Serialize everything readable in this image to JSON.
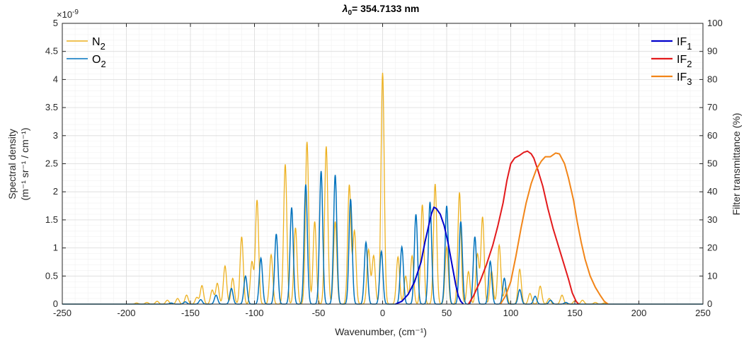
{
  "chart_data": {
    "type": "line",
    "title": {
      "symbol": "λ",
      "subscript": "0",
      "text": "= 354.7133 nm"
    },
    "xlabel": "Wavenumber, (cm⁻¹)",
    "ylabel_left": {
      "line1": "Spectral density",
      "line2": "(m⁻¹ sr⁻¹ / cm⁻¹)"
    },
    "ylabel_right": "Filter transmittance (%)",
    "y_exponent": {
      "base": "×10",
      "power": "-9"
    },
    "xlim": [
      -250,
      250
    ],
    "ylim_left": [
      0,
      5
    ],
    "ylim_right": [
      0,
      100
    ],
    "x_ticks": [
      "-250",
      "-200",
      "-150",
      "-100",
      "-50",
      "0",
      "50",
      "100",
      "150",
      "200",
      "250"
    ],
    "y_left_ticks": [
      "0",
      "0.5",
      "1",
      "1.5",
      "2",
      "2.5",
      "3",
      "3.5",
      "4",
      "4.5",
      "5"
    ],
    "y_right_ticks": [
      "0",
      "10",
      "20",
      "30",
      "40",
      "50",
      "60",
      "70",
      "80",
      "90",
      "100"
    ],
    "grid": true,
    "colors": {
      "N2": "#EDB120",
      "O2": "#0072BD",
      "IF1": "#0000CC",
      "IF2": "#E31A1C",
      "IF3": "#F28518"
    },
    "legend_left": [
      {
        "name": "N",
        "sub": "2",
        "color": "#EDB120"
      },
      {
        "name": "O",
        "sub": "2",
        "color": "#0072BD"
      }
    ],
    "legend_right": [
      {
        "name": "IF",
        "sub": "1",
        "color": "#0000CC"
      },
      {
        "name": "IF",
        "sub": "2",
        "color": "#E31A1C"
      },
      {
        "name": "IF",
        "sub": "3",
        "color": "#F28518"
      }
    ],
    "series": [
      {
        "name": "N2",
        "axis": "left",
        "color": "#EDB120",
        "kind": "lines",
        "peaks": [
          [
            -192,
            0.02
          ],
          [
            -184,
            0.03
          ],
          [
            -176,
            0.05
          ],
          [
            -168,
            0.07
          ],
          [
            -160,
            0.1
          ],
          [
            -153,
            0.16
          ],
          [
            -145,
            0.12
          ],
          [
            -141,
            0.33
          ],
          [
            -133,
            0.25
          ],
          [
            -129,
            0.37
          ],
          [
            -123,
            0.68
          ],
          [
            -117,
            0.46
          ],
          [
            -110,
            1.2
          ],
          [
            -102,
            0.75
          ],
          [
            -98,
            1.85
          ],
          [
            -87,
            0.88
          ],
          [
            -76,
            2.49
          ],
          [
            -68,
            1.36
          ],
          [
            -59,
            2.89
          ],
          [
            -53,
            1.47
          ],
          [
            -44,
            2.81
          ],
          [
            -37,
            1.47
          ],
          [
            -26,
            2.12
          ],
          [
            -22,
            1.3
          ],
          [
            -11,
            0.97
          ],
          [
            -7,
            0.86
          ],
          [
            0,
            4.12
          ],
          [
            12,
            0.84
          ],
          [
            18,
            0.5
          ],
          [
            23,
            0.86
          ],
          [
            31,
            1.77
          ],
          [
            41,
            2.14
          ],
          [
            50,
            1.02
          ],
          [
            60,
            1.99
          ],
          [
            67,
            0.58
          ],
          [
            74,
            0.89
          ],
          [
            78,
            1.55
          ],
          [
            85,
            0.59
          ],
          [
            91,
            1.05
          ],
          [
            96,
            0.3
          ],
          [
            107,
            0.62
          ],
          [
            115,
            0.19
          ],
          [
            123,
            0.32
          ],
          [
            130,
            0.1
          ],
          [
            140,
            0.16
          ],
          [
            150,
            0.06
          ],
          [
            156,
            0.07
          ],
          [
            166,
            0.03
          ],
          [
            173,
            0.02
          ]
        ]
      },
      {
        "name": "O2",
        "axis": "left",
        "color": "#0072BD",
        "kind": "lines",
        "peaks": [
          [
            -165,
            0.02
          ],
          [
            -154,
            0.04
          ],
          [
            -142,
            0.08
          ],
          [
            -130,
            0.16
          ],
          [
            -118,
            0.28
          ],
          [
            -107,
            0.5
          ],
          [
            -95,
            0.82
          ],
          [
            -83,
            1.25
          ],
          [
            -71,
            1.72
          ],
          [
            -60,
            2.13
          ],
          [
            -48,
            2.37
          ],
          [
            -37,
            2.3
          ],
          [
            -25,
            1.87
          ],
          [
            -13,
            1.1
          ],
          [
            -1,
            0.94
          ],
          [
            15,
            1.02
          ],
          [
            26,
            1.6
          ],
          [
            37,
            1.82
          ],
          [
            50,
            1.75
          ],
          [
            61,
            1.47
          ],
          [
            72,
            1.2
          ],
          [
            84,
            0.76
          ],
          [
            95,
            0.46
          ],
          [
            107,
            0.26
          ],
          [
            119,
            0.14
          ],
          [
            131,
            0.07
          ],
          [
            143,
            0.03
          ]
        ]
      },
      {
        "name": "IF1",
        "axis": "right",
        "color": "#0000CC",
        "kind": "curve",
        "points": [
          [
            10,
            0
          ],
          [
            15,
            1
          ],
          [
            20,
            3.5
          ],
          [
            25,
            8
          ],
          [
            30,
            15
          ],
          [
            33,
            22
          ],
          [
            36,
            28
          ],
          [
            38,
            32
          ],
          [
            40,
            34.5
          ],
          [
            42,
            34
          ],
          [
            45,
            32
          ],
          [
            48,
            28
          ],
          [
            51,
            22
          ],
          [
            53,
            17
          ],
          [
            55,
            12
          ],
          [
            57,
            7
          ],
          [
            59,
            3
          ],
          [
            61,
            1
          ],
          [
            63,
            0
          ]
        ]
      },
      {
        "name": "IF2",
        "axis": "right",
        "color": "#E31A1C",
        "kind": "curve",
        "points": [
          [
            67,
            0
          ],
          [
            71,
            3
          ],
          [
            76,
            8
          ],
          [
            81,
            14
          ],
          [
            86,
            21
          ],
          [
            90,
            28
          ],
          [
            94,
            36
          ],
          [
            97,
            44
          ],
          [
            100,
            50
          ],
          [
            103,
            52
          ],
          [
            107,
            53
          ],
          [
            110,
            54
          ],
          [
            113,
            54.5
          ],
          [
            116,
            53.5
          ],
          [
            118,
            52
          ],
          [
            121,
            48
          ],
          [
            125,
            42
          ],
          [
            129,
            34
          ],
          [
            133,
            27
          ],
          [
            137,
            21
          ],
          [
            141,
            15
          ],
          [
            145,
            9
          ],
          [
            148,
            4
          ],
          [
            151,
            1
          ],
          [
            153,
            0
          ]
        ]
      },
      {
        "name": "IF3",
        "axis": "right",
        "color": "#F28518",
        "kind": "curve",
        "points": [
          [
            92,
            0
          ],
          [
            96,
            3
          ],
          [
            100,
            8
          ],
          [
            104,
            17
          ],
          [
            108,
            27
          ],
          [
            112,
            36
          ],
          [
            116,
            43
          ],
          [
            120,
            48
          ],
          [
            124,
            51
          ],
          [
            127,
            52.5
          ],
          [
            131,
            52.5
          ],
          [
            135,
            53.8
          ],
          [
            138,
            53.5
          ],
          [
            142,
            50
          ],
          [
            145,
            45
          ],
          [
            149,
            37
          ],
          [
            152,
            29
          ],
          [
            155,
            22
          ],
          [
            158,
            16
          ],
          [
            162,
            10
          ],
          [
            166,
            6
          ],
          [
            170,
            3
          ],
          [
            173,
            1
          ],
          [
            176,
            0
          ]
        ]
      }
    ]
  }
}
